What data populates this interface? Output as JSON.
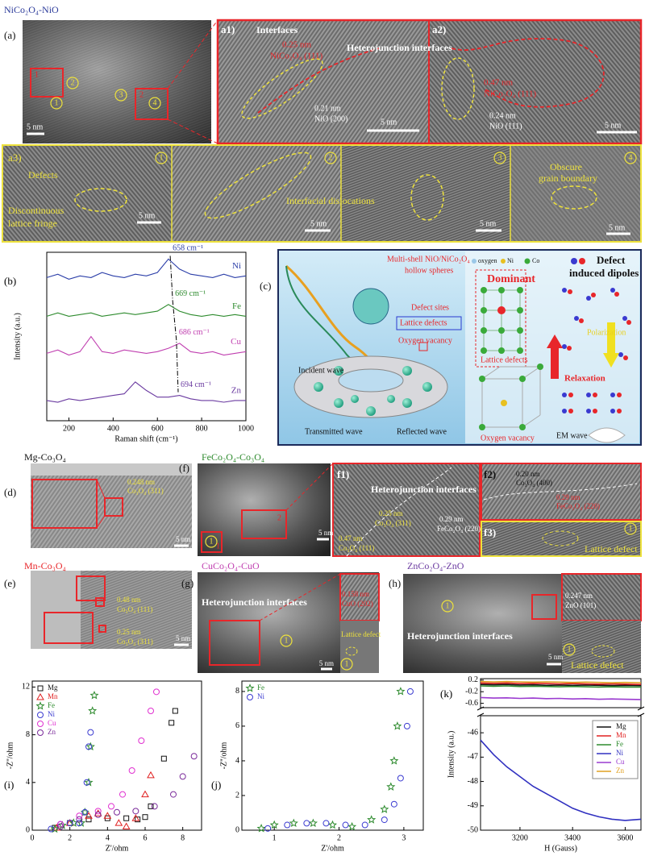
{
  "figure": {
    "title": "NiCo₂O₄-NiO",
    "a": {
      "label": "(a)",
      "scale": "5 nm",
      "boxes": [
        "1",
        "2"
      ],
      "sites": [
        "1",
        "2",
        "3",
        "4"
      ]
    },
    "a1": {
      "label": "a1)",
      "interfaces": "Interfaces",
      "d1": "0.25 nm",
      "p1": "NiCo₂O₄ (111)",
      "hetero": "Heterojunction interfaces",
      "d2": "0.21 nm",
      "p2": "NiO (200)",
      "scale": "5 nm"
    },
    "a2": {
      "label": "a2)",
      "d1": "0.47 nm",
      "p1": "NiCo₂O₄ (111)",
      "d2": "0.24 nm",
      "p2": "NiO (111)",
      "scale": "5 nm"
    },
    "a3": {
      "label": "a3)",
      "sites": [
        "1",
        "2",
        "3",
        "4"
      ],
      "defects": "Defects",
      "fringe": [
        "Discontinuous",
        "lattice fringe"
      ],
      "scales": [
        "5 nm",
        "5 nm",
        "5 nm",
        "5 nm"
      ],
      "dislocations": "Interfacial dislocations",
      "boundary": [
        "Obscure",
        "grain boundary"
      ]
    },
    "c": {
      "label": "(c)",
      "spheres": [
        "Multi-shell NiO/NiCo₂O₄",
        "hollow spheres"
      ],
      "defect_sites": "Defect sites",
      "lattice": "Lattice defects",
      "vacancy": "Oxygen vacancy",
      "incident": "Incident wave",
      "transmitted": "Transmitted wave",
      "reflected": "Reflected wave",
      "legend": [
        "oxygen",
        "Ni",
        "Co"
      ],
      "dominant": "Dominant",
      "lattice2": "Lattice defects",
      "vacancy2": "Oxygen vacancy",
      "dipoles": [
        "Defect",
        "induced dipoles"
      ],
      "polarization": "Polarization",
      "relaxation": "Relaxation",
      "em": "EM wave"
    },
    "d": {
      "name": "Mg-Co₃O₄",
      "label": "(d)",
      "d": "0.248 nm",
      "p": "Co₃O₄ (311)",
      "scale": "5 nm"
    },
    "e": {
      "name": "Mn-Co₃O₄",
      "label": "(e)",
      "d1": "0.48 nm",
      "p1": "Co₃O₄ (111)",
      "d2": "0.25 nm",
      "p2": "Co₃O₄ (311)",
      "scale": "5 nm"
    },
    "f": {
      "name": "FeCo₂O₄-Co₃O₄",
      "label": "(f)",
      "boxes": [
        "1",
        "2"
      ],
      "site": "1",
      "scale": "5 nm"
    },
    "f1": {
      "label": "f1)",
      "hetero": "Heterojunction interfaces",
      "d1": "0.25 nm",
      "p1": "Co₃O₄ (311)",
      "d2": "0.29 nm",
      "p2": "FeCo₂O₄ (220)",
      "d3": "0.47 nm",
      "p3": "Co₃O₄ (111)"
    },
    "f2": {
      "label": "f2)",
      "d1": "0.20 nm",
      "p1": "Co₃O₄ (400)",
      "d2": "0.29 nm",
      "p2": "FeCo₂O₄ (220)"
    },
    "f3": {
      "label": "f3)",
      "site": "1",
      "defect": "Lattice defect"
    },
    "g": {
      "name": "CuCo₂O₄-CuO",
      "label": "(g)",
      "hetero": "Heterojunction interfaces",
      "site": "1",
      "d": "0.158 nm",
      "p": "CuO (202)",
      "defect": "Lattice defect",
      "site2": "1",
      "scale": "5 nm"
    },
    "h": {
      "name": "ZnCo₂O₄-ZnO",
      "label": "(h)",
      "site": "1",
      "d": "0.247 nm",
      "p": "ZnO (101)",
      "hetero": "Heterojunction interfaces",
      "defect": "Lattice defect",
      "site2": "1",
      "scale": "5 nm"
    }
  },
  "chart_data": [
    {
      "type": "line",
      "label": "(b)",
      "xlabel": "Raman shift (cm⁻¹)",
      "ylabel": "Intensity (a.u.)",
      "legend": "inline",
      "xlim": [
        100,
        1000
      ],
      "xticks": [
        200,
        400,
        600,
        800,
        1000
      ],
      "ylim": [
        0,
        10
      ],
      "x": [
        100,
        150,
        200,
        250,
        300,
        350,
        400,
        450,
        500,
        550,
        600,
        650,
        700,
        750,
        800,
        850,
        900,
        950,
        1000
      ],
      "series": [
        {
          "name": "Ni",
          "color": "#2b3ea8",
          "values": [
            8.5,
            8.7,
            8.4,
            8.6,
            8.5,
            8.8,
            8.6,
            8.5,
            8.7,
            8.6,
            8.8,
            9.6,
            9.0,
            8.7,
            8.6,
            8.5,
            8.7,
            8.5,
            8.6
          ]
        },
        {
          "name": "Fe",
          "color": "#2e8b2e",
          "values": [
            6.2,
            6.4,
            6.2,
            6.3,
            6.4,
            6.2,
            6.3,
            6.4,
            6.3,
            6.4,
            6.5,
            6.9,
            6.5,
            6.3,
            6.2,
            6.3,
            6.2,
            6.3,
            6.2
          ]
        },
        {
          "name": "Cu",
          "color": "#c03fb0",
          "values": [
            4.0,
            4.2,
            3.9,
            4.1,
            5.0,
            4.1,
            4.0,
            4.2,
            4.1,
            4.0,
            4.1,
            4.3,
            4.6,
            4.1,
            4.0,
            4.1,
            3.9,
            4.0,
            4.1
          ]
        },
        {
          "name": "Zn",
          "color": "#6a3aa0",
          "values": [
            1.2,
            1.1,
            1.3,
            1.2,
            1.3,
            1.4,
            1.5,
            1.6,
            2.3,
            1.8,
            1.4,
            1.4,
            1.5,
            1.3,
            1.2,
            1.2,
            1.1,
            1.2,
            1.2
          ]
        }
      ],
      "peaks": [
        658,
        669,
        686,
        694
      ],
      "peak_labels": [
        "658 cm⁻¹",
        "669 cm⁻¹",
        "686 cm⁻¹",
        "694 cm⁻¹"
      ]
    },
    {
      "type": "scatter",
      "label": "(i)",
      "xlabel": "Z'/ohm",
      "ylabel": "-Z''/ohm",
      "legend": "upper left",
      "xlim": [
        0,
        9
      ],
      "xticks": [
        0,
        2,
        4,
        6,
        8
      ],
      "ylim": [
        0,
        12.5
      ],
      "yticks": [
        0,
        4,
        8,
        12
      ],
      "series": [
        {
          "name": "Mg",
          "color": "#111111",
          "marker": "square",
          "x": [
            1.2,
            2,
            3,
            4,
            5,
            5.6,
            6,
            6.3,
            7,
            7.4,
            7.6
          ],
          "values": [
            0.2,
            0.6,
            0.9,
            1.0,
            1.0,
            0.9,
            1.1,
            2,
            6,
            9,
            10
          ]
        },
        {
          "name": "Mn",
          "color": "#e02020",
          "marker": "triangle",
          "x": [
            1.3,
            2,
            3,
            3.5,
            4,
            4.6,
            5,
            5.5,
            6,
            6.3
          ],
          "values": [
            0.2,
            0.6,
            1.2,
            1.4,
            1.2,
            0.6,
            0.3,
            1,
            3,
            4.6
          ]
        },
        {
          "name": "Fe",
          "color": "#2e8b2e",
          "marker": "star",
          "x": [
            1.2,
            1.6,
            2.2,
            2.6,
            2.8,
            3.0,
            3.1,
            3.2,
            3.3
          ],
          "values": [
            0.1,
            0.4,
            0.6,
            0.6,
            1.5,
            4,
            7,
            10,
            11.3
          ]
        },
        {
          "name": "Ni",
          "color": "#3a3ad0",
          "marker": "circle",
          "x": [
            1.0,
            1.5,
            2.0,
            2.5,
            2.8,
            2.9,
            3.0,
            3.1
          ],
          "values": [
            0.1,
            0.5,
            0.6,
            0.6,
            1.5,
            4,
            7,
            8.2
          ]
        },
        {
          "name": "Cu",
          "color": "#e030d0",
          "marker": "circle",
          "x": [
            1.5,
            2.5,
            3.5,
            4.2,
            4.8,
            5.3,
            5.8,
            6.3,
            6.6
          ],
          "values": [
            0.5,
            1.2,
            1.6,
            2,
            3,
            5,
            7.5,
            10,
            11.6
          ]
        },
        {
          "name": "Zn",
          "color": "#7a2a9a",
          "marker": "circle",
          "x": [
            1.5,
            2.5,
            3.5,
            4.5,
            5.5,
            6.5,
            7.5,
            8.0,
            8.6
          ],
          "values": [
            0.3,
            0.9,
            1.3,
            1.5,
            1.6,
            2.0,
            3.0,
            4.5,
            6.2
          ]
        }
      ]
    },
    {
      "type": "scatter",
      "label": "(j)",
      "xlabel": "Z'/ohm",
      "ylabel": "-Z''/ohm",
      "legend": "upper left",
      "xlim": [
        0.5,
        3.3
      ],
      "xticks": [
        1,
        2,
        3
      ],
      "ylim": [
        0,
        8.6
      ],
      "yticks": [
        0,
        2,
        4,
        6,
        8
      ],
      "series": [
        {
          "name": "Fe",
          "color": "#2e8b2e",
          "marker": "star",
          "x": [
            0.8,
            1.0,
            1.3,
            1.6,
            1.9,
            2.2,
            2.5,
            2.7,
            2.8,
            2.85,
            2.9,
            2.95
          ],
          "values": [
            0.1,
            0.3,
            0.4,
            0.4,
            0.3,
            0.2,
            0.6,
            1.2,
            2.5,
            4,
            6,
            8
          ]
        },
        {
          "name": "Ni",
          "color": "#3a3ad0",
          "marker": "circle",
          "x": [
            0.9,
            1.2,
            1.5,
            1.8,
            2.1,
            2.4,
            2.7,
            2.85,
            2.95,
            3.05,
            3.1
          ],
          "values": [
            0.1,
            0.3,
            0.4,
            0.4,
            0.3,
            0.3,
            0.6,
            1.5,
            3,
            6,
            8
          ]
        }
      ]
    },
    {
      "type": "line",
      "label": "(k)",
      "xlabel": "H (Gauss)",
      "ylabel": "Intensity (a.u.)",
      "legend": "upper right",
      "xlim": [
        3050,
        3660
      ],
      "xticks": [
        3200,
        3400,
        3600
      ],
      "ylim_upper": [
        -0.75,
        0.25
      ],
      "yticks_upper": [
        0.2,
        -0.2,
        -0.6
      ],
      "ylim_lower": [
        -50,
        -45.3
      ],
      "yticks_lower": [
        -46,
        -47,
        -48,
        -49,
        -50
      ],
      "x": [
        3050,
        3100,
        3150,
        3200,
        3250,
        3300,
        3350,
        3400,
        3450,
        3500,
        3550,
        3600,
        3660
      ],
      "series": [
        {
          "name": "Mg",
          "color": "#111111",
          "values": [
            0.05,
            0.04,
            0.05,
            0.03,
            0.04,
            0.02,
            0.03,
            0.02,
            0.03,
            0.02,
            0.01,
            0.02,
            0.01
          ]
        },
        {
          "name": "Mn",
          "color": "#e02020",
          "values": [
            0.1,
            0.09,
            0.1,
            0.08,
            0.09,
            0.08,
            0.07,
            0.08,
            0.07,
            0.06,
            0.07,
            0.06,
            0.05
          ]
        },
        {
          "name": "Fe",
          "color": "#2e8b2e",
          "values": [
            0.0,
            -0.01,
            0.0,
            -0.02,
            -0.01,
            -0.02,
            -0.03,
            -0.02,
            -0.03,
            -0.04,
            -0.03,
            -0.04,
            -0.04
          ]
        },
        {
          "name": "Ni",
          "color": "#3030c0",
          "values": [
            -46.3,
            -46.9,
            -47.4,
            -47.8,
            -48.2,
            -48.5,
            -48.8,
            -49.1,
            -49.3,
            -49.45,
            -49.55,
            -49.6,
            -49.55
          ]
        },
        {
          "name": "Cu",
          "color": "#9a3ad0",
          "values": [
            -0.4,
            -0.42,
            -0.41,
            -0.43,
            -0.42,
            -0.44,
            -0.43,
            -0.45,
            -0.44,
            -0.46,
            -0.45,
            -0.46,
            -0.47
          ]
        },
        {
          "name": "Zn",
          "color": "#e0a020",
          "values": [
            0.15,
            0.14,
            0.15,
            0.14,
            0.13,
            0.14,
            0.13,
            0.12,
            0.13,
            0.12,
            0.11,
            0.12,
            0.11
          ]
        }
      ]
    }
  ]
}
